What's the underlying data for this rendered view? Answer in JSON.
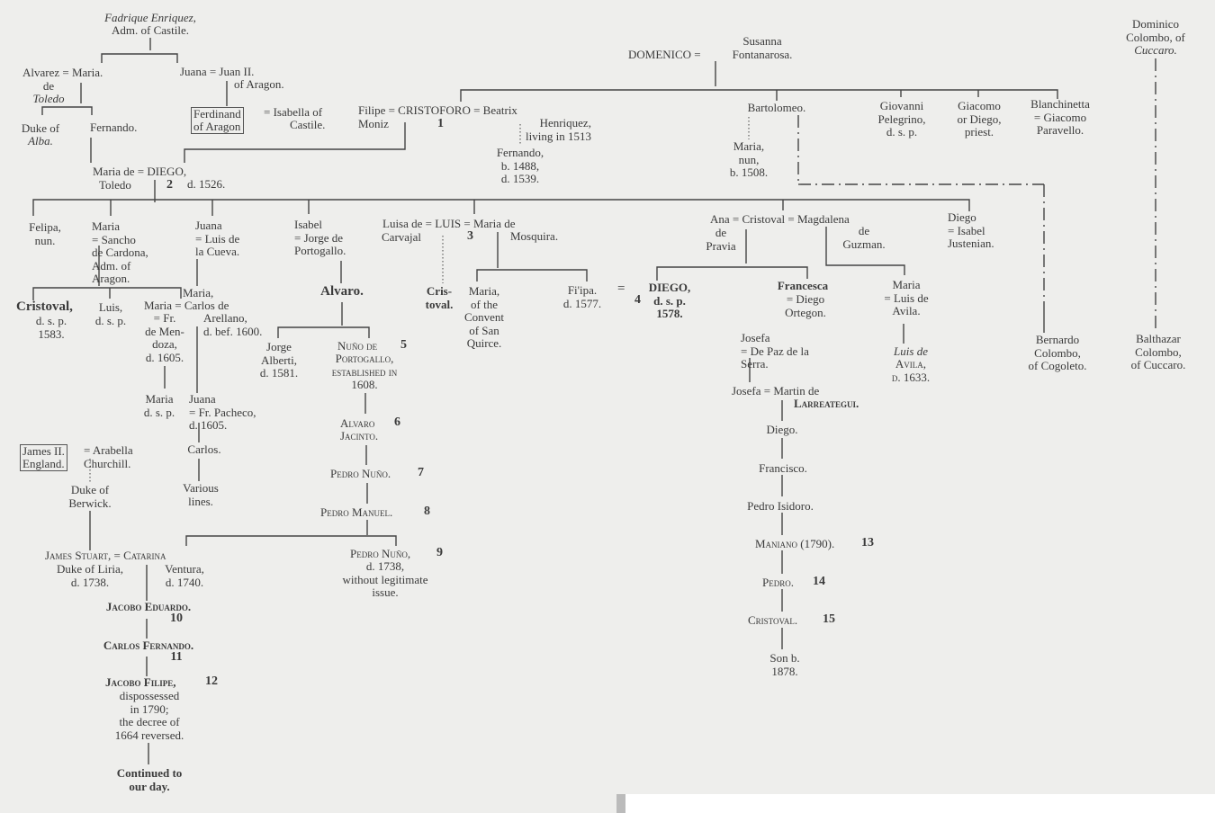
{
  "nodes": {
    "fadrique": "Fadrique Enriquez,",
    "fadrique_title": "Adm. of Castile.",
    "alvarez": "Alvarez = Maria.",
    "alvarez_de": "de",
    "toledo": "Toledo",
    "juana_juan": "Juana = Juan II.",
    "of_aragon": "of Aragon.",
    "ferdinand": "Ferdinand\nof Aragon",
    "isabella": "= Isabella of",
    "castile": "Castile.",
    "filipe_cristoforo": "Filipe = CRISTOFORO = Beatrix",
    "moniz": "Moniz",
    "num1": "1",
    "henriquez": "Henriquez,\nliving in 1513",
    "fernando_1488": "Fernando,\nb. 1488,\nd. 1539.",
    "duke_of": "Duke of",
    "alba": "Alba.",
    "fernando": "Fernando.",
    "maria_diego": "Maria de = DIEGO,",
    "toledo2": "Toledo",
    "num2": "2",
    "d1526": "d. 1526.",
    "susanna": "Susanna\nFontanarosa.",
    "domenico": "DOMENICO =",
    "dominico": "Dominico\nColombo, of",
    "cuccaro": "Cuccaro.",
    "bartolomeo": "Bartolomeo.",
    "giovanni": "Giovanni\nPelegrino,\nd. s. p.",
    "giacomo": "Giacomo\nor Diego,\npriest.",
    "blanchinetta": "Blanchinetta\n= Giacomo\nParavello.",
    "maria_nun": "Maria,\nnun,\nb. 1508.",
    "felipa": "Felipa,\nnun.",
    "maria_sancho": "Maria\n= Sancho\n   de Cardona,\n   Adm. of\n   Aragon.",
    "juana_luis": "Juana\n= Luis de\n   la Cueva.",
    "isabel": "Isabel\n= Jorge de\n   Portogallo.",
    "luisa_luis": "Luisa de = LUIS = Maria de",
    "carvajal": "Carvajal",
    "num3": "3",
    "mosquira": "Mosquira.",
    "ana_cristoval": "Ana = Cristoval = Magdalena",
    "de_pravia": "de\nPravia",
    "de_guzman": "de\nGuzman.",
    "diego_isabel": "Diego\n= Isabel\n   Justenian.",
    "cristoval_bold": "Cristoval,",
    "cristoval_dsp": "d. s. p.\n1583.",
    "luis_dsp": "Luis,\nd. s. p.",
    "maria_comma": "Maria,",
    "maria_carlos": "Maria = Carlos de",
    "fr_mendoza": "= Fr.\nde Men-\ndoza,\nd. 1605.",
    "arellano": "Arellano,\nd. bef. 1600.",
    "maria_dsp": "Maria\nd. s. p.",
    "juana_pacheco": "Juana\n= Fr. Pacheco,\n    d. 1605.",
    "carlos": "Carlos.",
    "various": "Various\nlines.",
    "alvaro": "Alvaro.",
    "jorge": "Jorge\nAlberti,\nd. 1581.",
    "nuno5": "Nuño de",
    "num5": "5",
    "portogallo": "Portogallo,\nestablished in\n1608.",
    "alvaro6": "Alvaro",
    "num6": "6",
    "jacinto": "Jacinto.",
    "pedro_nuno7": "Pedro Nuño.",
    "num7": "7",
    "pedro_manuel": "Pedro Manuel.",
    "num8": "8",
    "pedro_nuno9": "Pedro Nuño,",
    "num9": "9",
    "pedro_nuno9_info": "d. 1738,\nwithout legitimate\nissue.",
    "cris_toval": "Cris-\ntoval.",
    "maria_convent": "Maria,\nof the\nConvent\nof San\nQuirce.",
    "filipa": "Fi'ipa.\nd. 1577.",
    "eq": "=",
    "diego4": "DIEGO,\nd. s. p.\n1578.",
    "num4": "4",
    "francesca": "Francesca",
    "francesca_spouse": "= Diego\nOrtegon.",
    "maria_avila": "Maria\n= Luis de\nAvila.",
    "luis_de": "Luis de",
    "luis_avila": "Avila,\nd. 1633.",
    "josefa1": "Josefa\n= De Paz de la\n    Serra.",
    "josefa2": "Josefa = Martin de",
    "larreategui": "Larreategui.",
    "diego_l": "Diego.",
    "francisco": "Francisco.",
    "pedro_isidoro": "Pedro Isidoro.",
    "maniano": "Maniano (1790).",
    "num13": "13",
    "pedro14": "Pedro.",
    "num14": "14",
    "cristoval15": "Cristoval.",
    "num15": "15",
    "son": "Son b.\n1878.",
    "james2": "James II.\nEngland.",
    "arabella": "= Arabella\n   Churchill.",
    "berwick": "Duke of\nBerwick.",
    "james_stuart": "James Stuart, = Catarina",
    "liria": "Duke of Liria,\nd. 1738.",
    "ventura": "Ventura,\nd. 1740.",
    "jacobo_eduardo": "Jacobo Eduardo.",
    "num10": "10",
    "carlos_fernando": "Carlos Fernando.",
    "num11": "11",
    "jacobo_filipe": "Jacobo Filipe,",
    "num12": "12",
    "jacobo_filipe_info": "dispossessed\nin 1790;\nthe decree of\n1664 reversed.",
    "continued": "Continued to\nour day.",
    "bernardo": "Bernardo\nColombo,\nof Cogoleto.",
    "balthazar": "Balthazar\nColombo,\nof Cuccaro."
  }
}
